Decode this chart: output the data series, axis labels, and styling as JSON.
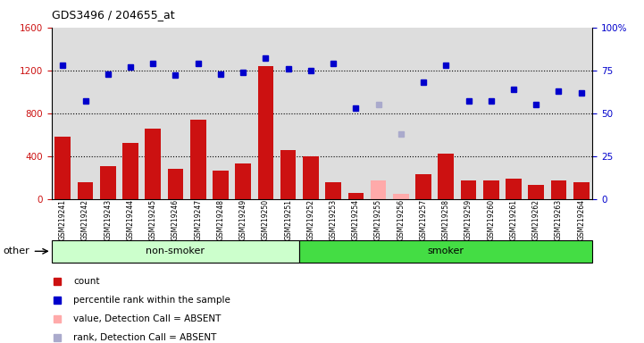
{
  "title": "GDS3496 / 204655_at",
  "samples": [
    "GSM219241",
    "GSM219242",
    "GSM219243",
    "GSM219244",
    "GSM219245",
    "GSM219246",
    "GSM219247",
    "GSM219248",
    "GSM219249",
    "GSM219250",
    "GSM219251",
    "GSM219252",
    "GSM219253",
    "GSM219254",
    "GSM219255",
    "GSM219256",
    "GSM219257",
    "GSM219258",
    "GSM219259",
    "GSM219260",
    "GSM219261",
    "GSM219262",
    "GSM219263",
    "GSM219264"
  ],
  "counts": [
    580,
    155,
    305,
    520,
    660,
    280,
    740,
    265,
    330,
    1240,
    460,
    400,
    160,
    55,
    170,
    50,
    230,
    420,
    175,
    170,
    190,
    130,
    175,
    155
  ],
  "ranks": [
    78,
    57,
    73,
    77,
    79,
    72,
    79,
    73,
    74,
    82,
    76,
    75,
    79,
    53,
    55,
    38,
    68,
    78,
    57,
    57,
    64,
    55,
    63,
    62
  ],
  "absent_mask": [
    false,
    false,
    false,
    false,
    false,
    false,
    false,
    false,
    false,
    false,
    false,
    false,
    false,
    false,
    true,
    true,
    false,
    false,
    false,
    false,
    false,
    false,
    false,
    false
  ],
  "non_smoker_count": 11,
  "smoker_count": 13,
  "ylim_left": [
    0,
    1600
  ],
  "ylim_right": [
    0,
    100
  ],
  "yticks_left": [
    0,
    400,
    800,
    1200,
    1600
  ],
  "yticks_right": [
    0,
    25,
    50,
    75,
    100
  ],
  "bar_color": "#cc1111",
  "bar_absent_color": "#ffaaaa",
  "rank_color": "#0000cc",
  "rank_absent_color": "#aaaacc",
  "nonsmoker_bg": "#ccffcc",
  "smoker_bg": "#44dd44",
  "plot_bg": "#dddddd",
  "legend_items": [
    {
      "color": "#cc1111",
      "label": "count",
      "marker": "s"
    },
    {
      "color": "#0000cc",
      "label": "percentile rank within the sample",
      "marker": "s"
    },
    {
      "color": "#ffaaaa",
      "label": "value, Detection Call = ABSENT",
      "marker": "s"
    },
    {
      "color": "#aaaacc",
      "label": "rank, Detection Call = ABSENT",
      "marker": "s"
    }
  ]
}
